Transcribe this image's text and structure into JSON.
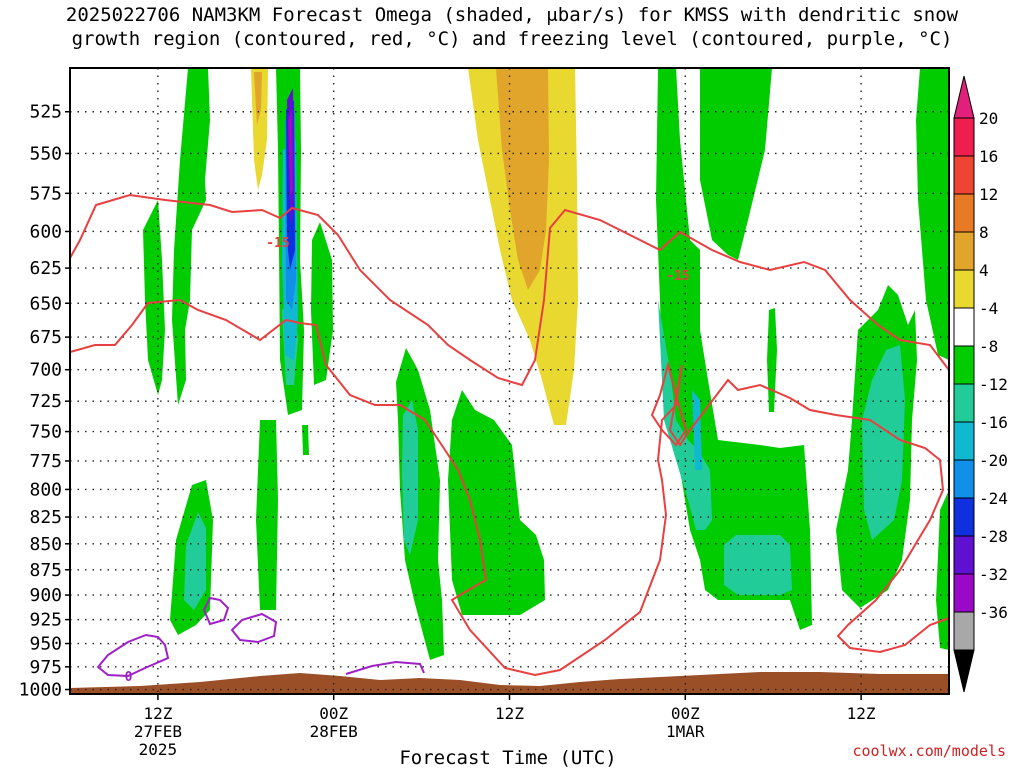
{
  "title": {
    "line1": "2025022706 NAM3KM Forecast Omega (shaded, μbar/s) for KMSS with dendritic snow",
    "line2": "growth region (contoured, red, °C) and freezing level (contoured, purple, °C)"
  },
  "credit": "coolwx.com/models",
  "chart_data": {
    "type": "time-height contour",
    "xlabel": "Forecast Time (UTC)",
    "ylabel": "",
    "x_ticks": [
      {
        "label": "12Z",
        "sub1": "27FEB",
        "sub2": "2025",
        "hours": 6
      },
      {
        "label": "00Z",
        "sub1": "28FEB",
        "sub2": "",
        "hours": 18
      },
      {
        "label": "12Z",
        "sub1": "",
        "sub2": "",
        "hours": 30
      },
      {
        "label": "00Z",
        "sub1": "1MAR",
        "sub2": "",
        "hours": 42
      },
      {
        "label": "12Z",
        "sub1": "",
        "sub2": "",
        "hours": 54
      }
    ],
    "xlim_hours": [
      0,
      60
    ],
    "y_ticks": [
      525,
      550,
      575,
      600,
      625,
      650,
      675,
      700,
      725,
      750,
      775,
      800,
      825,
      850,
      875,
      900,
      925,
      950,
      975,
      1000
    ],
    "ylim_hPa": [
      500,
      1005
    ],
    "y_scale": "log-pressure (inverted)",
    "grid": "dotted",
    "colorbar": {
      "labels": [
        "20",
        "16",
        "12",
        "8",
        "4",
        "-4",
        "-8",
        "-12",
        "-16",
        "-20",
        "-24",
        "-28",
        "-32",
        "-36"
      ],
      "colors": [
        "#ee1e4e",
        "#ee4433",
        "#e87a25",
        "#e0a52a",
        "#e8d830",
        "#ffffff",
        "#00cc00",
        "#22cc99",
        "#10b8d0",
        "#1090e8",
        "#1030e0",
        "#6010d0",
        "#9a08c8",
        "#a8a8a8"
      ],
      "top_arrow": "#e0207a",
      "bottom_arrow": "#000000"
    },
    "contour_labels": [
      {
        "text": "-15",
        "color": "#e84040",
        "hours": 14.2,
        "p": 607
      },
      {
        "text": "-15",
        "color": "#e84040",
        "hours": 41.5,
        "p": 630
      },
      {
        "text": "0",
        "color": "#a020c8",
        "hours": 4.0,
        "p": 985
      }
    ],
    "colors": {
      "dgz_contour": "#e84040",
      "freezing_contour": "#a020c8",
      "terrain": "#9a4f27"
    }
  }
}
